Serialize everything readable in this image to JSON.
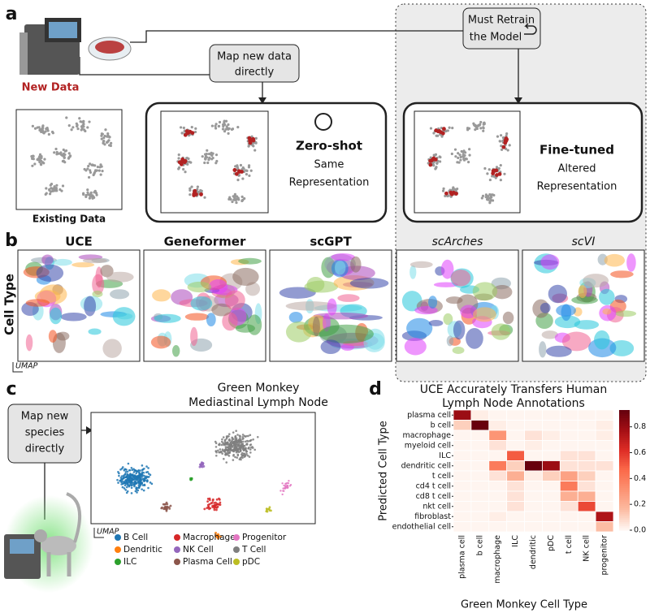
{
  "figure": {
    "a": {
      "label": "a",
      "new_data": "New Data",
      "retrain": [
        "Must Retrain",
        "the Model"
      ],
      "map_direct": [
        "Map new data",
        "directly"
      ],
      "existing": "Existing Data",
      "zero_shot": [
        "Zero-shot",
        "Same",
        "Representation"
      ],
      "fine_tuned": [
        "Fine-tuned",
        "Altered",
        "Representation"
      ]
    },
    "b": {
      "label": "b",
      "row_label": "Cell Type",
      "methods": [
        "UCE",
        "Geneformer",
        "scGPT",
        "scArches",
        "scVI"
      ],
      "axis": "UMAP"
    },
    "c": {
      "label": "c",
      "title": [
        "Green Monkey",
        "Mediastinal Lymph Node"
      ],
      "callout": [
        "Map new",
        "species",
        "directly"
      ],
      "axis": "UMAP",
      "legend": [
        {
          "name": "B Cell",
          "color": "#1f77b4"
        },
        {
          "name": "Dendritic",
          "color": "#ff7f0e"
        },
        {
          "name": "ILC",
          "color": "#2ca02c"
        },
        {
          "name": "Macrophage",
          "color": "#d62728"
        },
        {
          "name": "NK Cell",
          "color": "#9467bd"
        },
        {
          "name": "Plasma Cell",
          "color": "#8c564b"
        },
        {
          "name": "Progenitor",
          "color": "#e377c2"
        },
        {
          "name": "T Cell",
          "color": "#7f7f7f"
        },
        {
          "name": "pDC",
          "color": "#bcbd22"
        }
      ]
    },
    "d": {
      "label": "d"
    }
  },
  "chart_data": {
    "type": "heatmap",
    "title": [
      "UCE Accurately Transfers Human",
      "Lymph Node Annotations"
    ],
    "ylabel": "Predicted Cell Type",
    "xlabel": "Green Monkey Cell Type",
    "rows": [
      "plasma cell",
      "b cell",
      "macrophage",
      "myeloid cell",
      "ILC",
      "dendritic cell",
      "t cell",
      "cd4 t cell",
      "cd8 t cell",
      "nkt cell",
      "fibroblast",
      "endothelial cell"
    ],
    "columns": [
      "plasma cell",
      "b cell",
      "macrophage",
      "ILC",
      "dendritic",
      "pDC",
      "t cell",
      "NK cell",
      "progenitor"
    ],
    "values": [
      [
        0.8,
        0.02,
        0,
        0,
        0,
        0,
        0,
        0,
        0
      ],
      [
        0.1,
        0.95,
        0.02,
        0,
        0,
        0,
        0,
        0,
        0.02
      ],
      [
        0,
        0,
        0.3,
        0,
        0.05,
        0.02,
        0,
        0,
        0.02
      ],
      [
        0,
        0,
        0.05,
        0,
        0.02,
        0,
        0,
        0,
        0
      ],
      [
        0,
        0,
        0,
        0.5,
        0,
        0,
        0.05,
        0.05,
        0
      ],
      [
        0,
        0,
        0.4,
        0.1,
        0.95,
        0.8,
        0.05,
        0.05,
        0.05
      ],
      [
        0,
        0,
        0.05,
        0.2,
        0.02,
        0.1,
        0.25,
        0.1,
        0
      ],
      [
        0,
        0,
        0,
        0.05,
        0,
        0,
        0.4,
        0.05,
        0
      ],
      [
        0,
        0,
        0,
        0.05,
        0,
        0,
        0.2,
        0.2,
        0
      ],
      [
        0,
        0,
        0,
        0.05,
        0,
        0,
        0.05,
        0.55,
        0
      ],
      [
        0,
        0,
        0.02,
        0,
        0,
        0,
        0,
        0,
        0.75
      ],
      [
        0,
        0,
        0,
        0,
        0,
        0,
        0,
        0,
        0.15
      ]
    ],
    "colormap": "Reds",
    "zlim": [
      0,
      0.93
    ],
    "zticks": [
      {
        "value": 0,
        "label": "0.0"
      },
      0.2,
      0.4,
      0.6,
      0.8
    ]
  }
}
